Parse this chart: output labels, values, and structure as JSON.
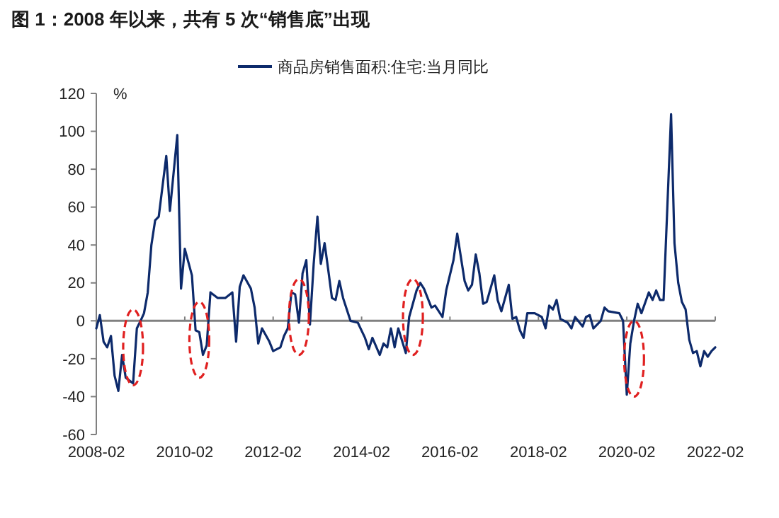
{
  "chart_data": {
    "type": "line",
    "title": "图 1：2008 年以来，共有 5 次“销售底”出现",
    "ylabel": "%",
    "legend": "top",
    "marker": "none",
    "line_style": "solid",
    "x": [
      "2008-02",
      "2008-03",
      "2008-04",
      "2008-05",
      "2008-06",
      "2008-07",
      "2008-08",
      "2008-09",
      "2008-10",
      "2008-12",
      "2009-01",
      "2009-02",
      "2009-03",
      "2009-04",
      "2009-05",
      "2009-06",
      "2009-07",
      "2009-09",
      "2009-10",
      "2009-12",
      "2010-01",
      "2010-02",
      "2010-04",
      "2010-05",
      "2010-06",
      "2010-07",
      "2010-08",
      "2010-09",
      "2010-11",
      "2011-01",
      "2011-03",
      "2011-04",
      "2011-05",
      "2011-06",
      "2011-08",
      "2011-09",
      "2011-10",
      "2011-11",
      "2012-01",
      "2012-02",
      "2012-04",
      "2012-05",
      "2012-06",
      "2012-07",
      "2012-08",
      "2012-09",
      "2012-10",
      "2012-11",
      "2012-12",
      "2013-01",
      "2013-02",
      "2013-03",
      "2013-04",
      "2013-05",
      "2013-06",
      "2013-07",
      "2013-08",
      "2013-09",
      "2013-11",
      "2014-01",
      "2014-03",
      "2014-04",
      "2014-05",
      "2014-07",
      "2014-08",
      "2014-09",
      "2014-10",
      "2014-11",
      "2014-12",
      "2015-02",
      "2015-03",
      "2015-05",
      "2015-06",
      "2015-07",
      "2015-09",
      "2015-10",
      "2015-12",
      "2016-01",
      "2016-03",
      "2016-04",
      "2016-06",
      "2016-07",
      "2016-08",
      "2016-09",
      "2016-10",
      "2016-11",
      "2016-12",
      "2017-02",
      "2017-03",
      "2017-04",
      "2017-06",
      "2017-07",
      "2017-08",
      "2017-09",
      "2017-10",
      "2017-11",
      "2018-01",
      "2018-03",
      "2018-04",
      "2018-05",
      "2018-06",
      "2018-07",
      "2018-08",
      "2018-10",
      "2018-11",
      "2018-12",
      "2019-02",
      "2019-03",
      "2019-04",
      "2019-05",
      "2019-07",
      "2019-08",
      "2019-09",
      "2019-12",
      "2020-01",
      "2020-02",
      "2020-03",
      "2020-04",
      "2020-05",
      "2020-06",
      "2020-08",
      "2020-09",
      "2020-10",
      "2020-11",
      "2020-12",
      "2021-02",
      "2021-03",
      "2021-04",
      "2021-05",
      "2021-06",
      "2021-07",
      "2021-08",
      "2021-09",
      "2021-10",
      "2021-11",
      "2021-12",
      "2022-01",
      "2022-02"
    ],
    "series": [
      {
        "name": "商品房销售面积:住宅:当月同比",
        "color": "#0d2a6b",
        "values": [
          -4,
          3,
          -11,
          -14,
          -8,
          -29,
          -37,
          -18,
          -30,
          -33,
          -4,
          0,
          4,
          15,
          40,
          53,
          55,
          87,
          58,
          98,
          17,
          38,
          24,
          -5,
          -6,
          -18,
          -13,
          15,
          12,
          12,
          15,
          -11,
          18,
          24,
          17,
          7,
          -12,
          -4,
          -11,
          -16,
          -14,
          -8,
          -4,
          15,
          14,
          -1,
          25,
          32,
          -2,
          30,
          55,
          30,
          41,
          27,
          12,
          11,
          21,
          12,
          0,
          -1,
          -9,
          -15,
          -9,
          -18,
          -12,
          -14,
          -4,
          -14,
          -4,
          -17,
          2,
          16,
          20,
          17,
          7,
          8,
          2,
          16,
          32,
          46,
          21,
          16,
          19,
          35,
          25,
          9,
          10,
          24,
          11,
          5,
          19,
          1,
          2,
          -5,
          -9,
          4,
          4,
          2,
          -4,
          8,
          6,
          11,
          1,
          -1,
          -4,
          2,
          -3,
          2,
          3,
          -4,
          0,
          7,
          5,
          4,
          0,
          -39,
          -12,
          0,
          9,
          4,
          15,
          11,
          16,
          11,
          11,
          109,
          41,
          20,
          10,
          6,
          -10,
          -17,
          -16,
          -24,
          -16,
          -19,
          -16,
          -14
        ]
      }
    ],
    "xlim": [
      "2008-02",
      "2022-02"
    ],
    "xticks": [
      {
        "value": "2008-02",
        "label": "2008-02"
      },
      {
        "value": "2010-02",
        "label": "2010-02"
      },
      {
        "value": "2012-02",
        "label": "2012-02"
      },
      {
        "value": "2014-02",
        "label": "2014-02"
      },
      {
        "value": "2016-02",
        "label": "2016-02"
      },
      {
        "value": "2018-02",
        "label": "2018-02"
      },
      {
        "value": "2020-02",
        "label": "2020-02"
      },
      {
        "value": "2022-02",
        "label": "2022-02"
      }
    ],
    "ylim": [
      -60,
      120
    ],
    "yticks": [
      -60,
      -40,
      -20,
      0,
      20,
      40,
      60,
      80,
      100,
      120
    ]
  }
}
